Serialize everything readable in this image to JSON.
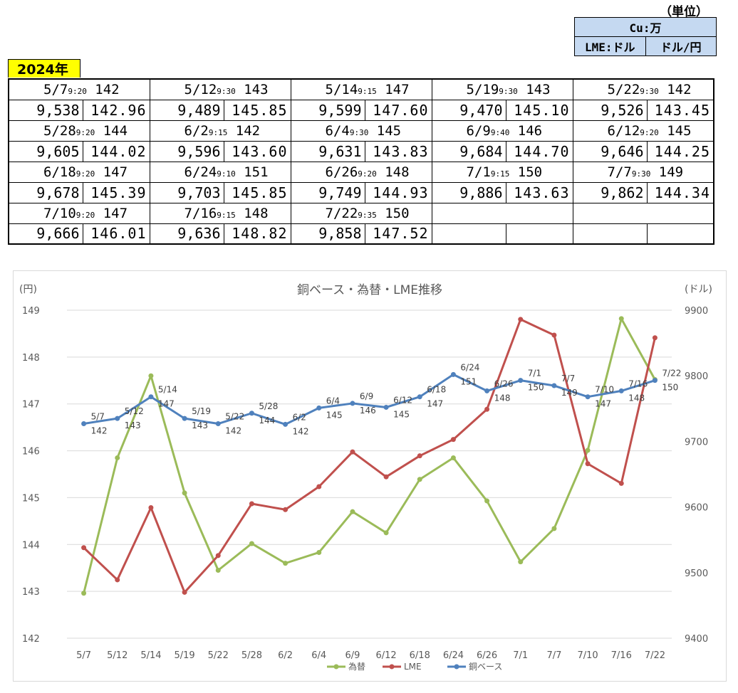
{
  "header": {
    "unit_label": "（単位）",
    "unit_box": {
      "cu": "Cu:万",
      "lme": "LME:ドル",
      "fx": "ドル/円"
    },
    "year": "2024年"
  },
  "price_table": [
    [
      {
        "date": "5/7",
        "time": "9:20",
        "copper": "142",
        "lme": "9,538",
        "fx": "142.96"
      },
      {
        "date": "5/12",
        "time": "9:30",
        "copper": "143",
        "lme": "9,489",
        "fx": "145.85"
      },
      {
        "date": "5/14",
        "time": "9:15",
        "copper": "147",
        "lme": "9,599",
        "fx": "147.60"
      },
      {
        "date": "5/19",
        "time": "9:30",
        "copper": "143",
        "lme": "9,470",
        "fx": "145.10"
      },
      {
        "date": "5/22",
        "time": "9:30",
        "copper": "142",
        "lme": "9,526",
        "fx": "143.45"
      }
    ],
    [
      {
        "date": "5/28",
        "time": "9:20",
        "copper": "144",
        "lme": "9,605",
        "fx": "144.02"
      },
      {
        "date": "6/2",
        "time": "9:15",
        "copper": "142",
        "lme": "9,596",
        "fx": "143.60"
      },
      {
        "date": "6/4",
        "time": "9:30",
        "copper": "145",
        "lme": "9,631",
        "fx": "143.83"
      },
      {
        "date": "6/9",
        "time": "9:40",
        "copper": "146",
        "lme": "9,684",
        "fx": "144.70"
      },
      {
        "date": "6/12",
        "time": "9:20",
        "copper": "145",
        "lme": "9,646",
        "fx": "144.25"
      }
    ],
    [
      {
        "date": "6/18",
        "time": "9:20",
        "copper": "147",
        "lme": "9,678",
        "fx": "145.39"
      },
      {
        "date": "6/24",
        "time": "9:10",
        "copper": "151",
        "lme": "9,703",
        "fx": "145.85"
      },
      {
        "date": "6/26",
        "time": "9:20",
        "copper": "148",
        "lme": "9,749",
        "fx": "144.93"
      },
      {
        "date": "7/1",
        "time": "9:15",
        "copper": "150",
        "lme": "9,886",
        "fx": "143.63"
      },
      {
        "date": "7/7",
        "time": "9:30",
        "copper": "149",
        "lme": "9,862",
        "fx": "144.34"
      }
    ],
    [
      {
        "date": "7/10",
        "time": "9:20",
        "copper": "147",
        "lme": "9,666",
        "fx": "146.01"
      },
      {
        "date": "7/16",
        "time": "9:15",
        "copper": "148",
        "lme": "9,636",
        "fx": "148.82"
      },
      {
        "date": "7/22",
        "time": "9:35",
        "copper": "150",
        "lme": "9,858",
        "fx": "147.52"
      },
      null,
      null
    ]
  ],
  "chart_data": {
    "type": "line",
    "title": "銅ベース・為替・LME推移",
    "y_left_label": "(円)",
    "y_right_label": "(ドル)",
    "y_left_lim": [
      142,
      149
    ],
    "y_left_ticks": [
      "142",
      "143",
      "144",
      "145",
      "146",
      "147",
      "148",
      "149"
    ],
    "y_right_lim": [
      9400,
      9900
    ],
    "y_right_ticks": [
      "9400",
      "9500",
      "9600",
      "9700",
      "9800",
      "9900"
    ],
    "grid": true,
    "legend_position": "bottom",
    "categories": [
      "5/7",
      "5/12",
      "5/14",
      "5/19",
      "5/22",
      "5/28",
      "6/2",
      "6/4",
      "6/9",
      "6/12",
      "6/18",
      "6/24",
      "6/26",
      "7/1",
      "7/7",
      "7/10",
      "7/16",
      "7/22"
    ],
    "series": [
      {
        "name": "為替",
        "axis": "left",
        "color": "#9bbb59",
        "values": [
          142.96,
          145.85,
          147.6,
          145.1,
          143.45,
          144.02,
          143.6,
          143.83,
          144.7,
          144.25,
          145.39,
          145.85,
          144.93,
          143.63,
          144.34,
          146.01,
          148.82,
          147.52
        ]
      },
      {
        "name": "LME",
        "axis": "right",
        "color": "#c0504d",
        "values": [
          9538,
          9489,
          9599,
          9470,
          9526,
          9605,
          9596,
          9631,
          9684,
          9646,
          9678,
          9703,
          9749,
          9886,
          9862,
          9666,
          9636,
          9858
        ]
      },
      {
        "name": "銅ベース",
        "axis": "right",
        "color": "#4f81bd",
        "values": [
          9727,
          9735,
          9768,
          9735,
          9727,
          9743,
          9726,
          9751,
          9758,
          9752,
          9768,
          9802,
          9777,
          9793,
          9785,
          9768,
          9777,
          9793
        ],
        "point_labels": [
          {
            "date": "5/7",
            "value": "142"
          },
          {
            "date": "5/12",
            "value": "143"
          },
          {
            "date": "5/14",
            "value": "147"
          },
          {
            "date": "5/19",
            "value": "143"
          },
          {
            "date": "5/22",
            "value": "142"
          },
          {
            "date": "5/28",
            "value": "144"
          },
          {
            "date": "6/2",
            "value": "142"
          },
          {
            "date": "6/4",
            "value": "145"
          },
          {
            "date": "6/9",
            "value": "146"
          },
          {
            "date": "6/12",
            "value": "145"
          },
          {
            "date": "6/18",
            "value": "147"
          },
          {
            "date": "6/24",
            "value": "151"
          },
          {
            "date": "6/26",
            "value": "148"
          },
          {
            "date": "7/1",
            "value": "150"
          },
          {
            "date": "7/7",
            "value": "149"
          },
          {
            "date": "7/10",
            "value": "147"
          },
          {
            "date": "7/16",
            "value": "148"
          },
          {
            "date": "7/22",
            "value": "150"
          }
        ]
      }
    ],
    "legend_order": [
      "為替",
      "LME",
      "銅ベース"
    ]
  }
}
